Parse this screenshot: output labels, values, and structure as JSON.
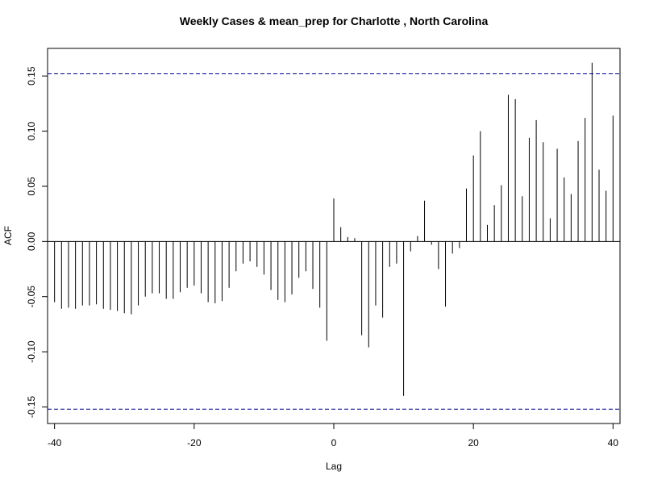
{
  "chart_data": {
    "type": "bar",
    "title": "Weekly Cases & mean_prep for Charlotte , North Carolina",
    "xlabel": "Lag",
    "ylabel": "ACF",
    "xlim": [
      -41,
      41
    ],
    "ylim": [
      -0.165,
      0.175
    ],
    "x_ticks": [
      -40,
      -20,
      0,
      20,
      40
    ],
    "x_tick_labels": [
      "-40",
      "-20",
      "0",
      "20",
      "40"
    ],
    "y_ticks": [
      -0.15,
      -0.1,
      -0.05,
      0.0,
      0.05,
      0.1,
      0.15
    ],
    "y_tick_labels": [
      "-0.15",
      "-0.10",
      "-0.05",
      "0.00",
      "0.05",
      "0.10",
      "0.15"
    ],
    "confidence_limit": 0.152,
    "lags": [
      -40,
      -39,
      -38,
      -37,
      -36,
      -35,
      -34,
      -33,
      -32,
      -31,
      -30,
      -29,
      -28,
      -27,
      -26,
      -25,
      -24,
      -23,
      -22,
      -21,
      -20,
      -19,
      -18,
      -17,
      -16,
      -15,
      -14,
      -13,
      -12,
      -11,
      -10,
      -9,
      -8,
      -7,
      -6,
      -5,
      -4,
      -3,
      -2,
      -1,
      0,
      1,
      2,
      3,
      4,
      5,
      6,
      7,
      8,
      9,
      10,
      11,
      12,
      13,
      14,
      15,
      16,
      17,
      18,
      19,
      20,
      21,
      22,
      23,
      24,
      25,
      26,
      27,
      28,
      29,
      30,
      31,
      32,
      33,
      34,
      35,
      36,
      37,
      38,
      39,
      40
    ],
    "acf": [
      -0.055,
      -0.061,
      -0.06,
      -0.061,
      -0.058,
      -0.058,
      -0.057,
      -0.061,
      -0.062,
      -0.063,
      -0.065,
      -0.066,
      -0.058,
      -0.05,
      -0.047,
      -0.047,
      -0.052,
      -0.052,
      -0.046,
      -0.042,
      -0.04,
      -0.047,
      -0.055,
      -0.056,
      -0.054,
      -0.042,
      -0.027,
      -0.02,
      -0.018,
      -0.023,
      -0.03,
      -0.044,
      -0.053,
      -0.055,
      -0.048,
      -0.033,
      -0.027,
      -0.043,
      -0.06,
      -0.09,
      0.039,
      0.013,
      0.004,
      0.003,
      -0.085,
      -0.096,
      -0.058,
      -0.069,
      -0.023,
      -0.02,
      -0.14,
      -0.009,
      0.005,
      0.037,
      -0.003,
      -0.025,
      -0.059,
      -0.011,
      -0.006,
      0.048,
      0.078,
      0.1,
      0.015,
      0.033,
      0.051,
      0.133,
      0.129,
      0.041,
      0.094,
      0.11,
      0.09,
      0.021,
      0.084,
      0.058,
      0.043,
      0.091,
      0.112,
      0.162,
      0.065,
      0.046,
      0.114
    ],
    "colors": {
      "bars": "#000000",
      "confidence_lines": "#00008b",
      "axes": "#000000",
      "background": "#ffffff"
    },
    "grid": false,
    "legend": "none"
  }
}
